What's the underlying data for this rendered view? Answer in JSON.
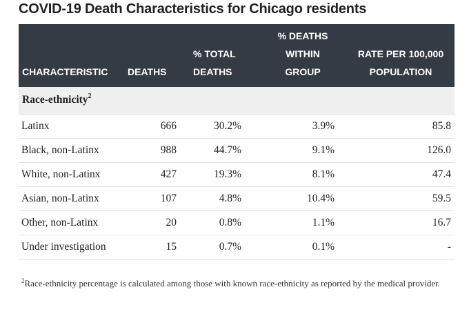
{
  "title": "COVID-19 Death Characteristics for Chicago residents",
  "table": {
    "headers": {
      "characteristic": "CHARACTERISTIC",
      "deaths": "DEATHS",
      "pct_total": "% TOTAL DEATHS",
      "pct_within": "% DEATHS WITHIN GROUP",
      "rate": "RATE PER 100,000 POPULATION"
    },
    "group_label": "Race-ethnicity",
    "group_footnote_mark": "2",
    "rows": [
      {
        "characteristic": "Latinx",
        "deaths": "666",
        "pct_total": "30.2%",
        "pct_within": "3.9%",
        "rate": "85.8"
      },
      {
        "characteristic": "Black, non-Latinx",
        "deaths": "988",
        "pct_total": "44.7%",
        "pct_within": "9.1%",
        "rate": "126.0"
      },
      {
        "characteristic": "White, non-Latinx",
        "deaths": "427",
        "pct_total": "19.3%",
        "pct_within": "8.1%",
        "rate": "47.4"
      },
      {
        "characteristic": "Asian, non-Latinx",
        "deaths": "107",
        "pct_total": "4.8%",
        "pct_within": "10.4%",
        "rate": "59.5"
      },
      {
        "characteristic": "Other, non-Latinx",
        "deaths": "20",
        "pct_total": "0.8%",
        "pct_within": "1.1%",
        "rate": "16.7"
      },
      {
        "characteristic": "Under investigation",
        "deaths": "15",
        "pct_total": "0.7%",
        "pct_within": "0.1%",
        "rate": "-"
      }
    ]
  },
  "footnote": {
    "mark": "2",
    "text": "Race-ethnicity percentage is calculated among those with known race-ethnicity as reported by the medical provider."
  }
}
